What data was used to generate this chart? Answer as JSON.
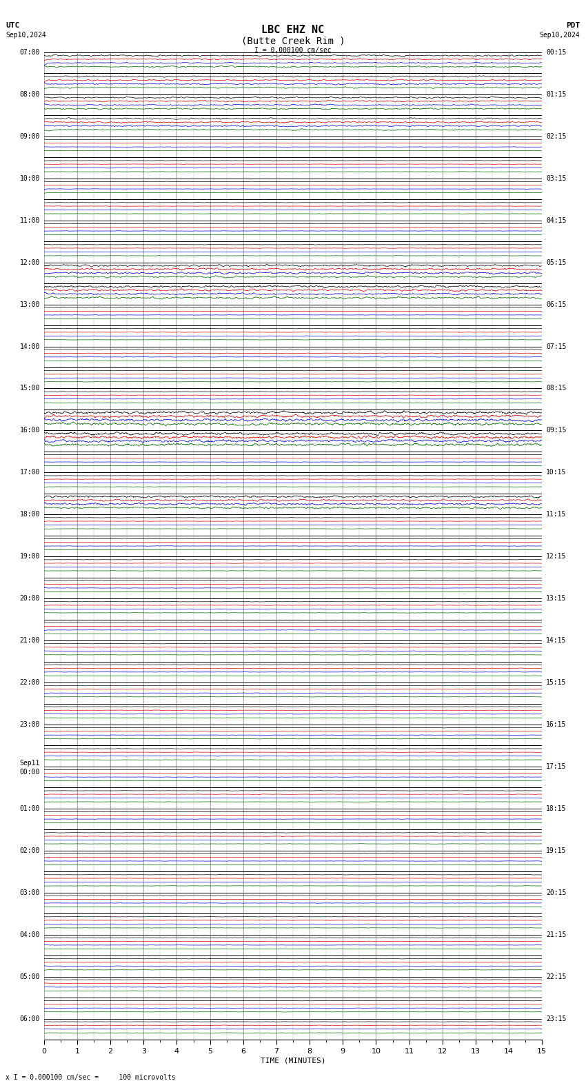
{
  "title_line1": "LBC EHZ NC",
  "title_line2": "(Butte Creek Rim )",
  "scale_label": "I = 0.000100 cm/sec",
  "utc_label": "UTC",
  "pdt_label": "PDT",
  "utc_date": "Sep10,2024",
  "pdt_date": "Sep10,2024",
  "bottom_note": "x I = 0.000100 cm/sec =     100 microvolts",
  "xlabel": "TIME (MINUTES)",
  "bg_color": "#ffffff",
  "grid_color": "#aaaaaa",
  "trace_colors": [
    "#000000",
    "#cc0000",
    "#0000cc",
    "#006400"
  ],
  "n_rows": 47,
  "x_min": 0,
  "x_max": 15,
  "x_ticks": [
    0,
    1,
    2,
    3,
    4,
    5,
    6,
    7,
    8,
    9,
    10,
    11,
    12,
    13,
    14,
    15
  ],
  "left_labels": [
    "07:00",
    "08:00",
    "09:00",
    "10:00",
    "11:00",
    "12:00",
    "13:00",
    "14:00",
    "15:00",
    "16:00",
    "17:00",
    "18:00",
    "19:00",
    "20:00",
    "21:00",
    "22:00",
    "23:00",
    "Sep11\n00:00",
    "01:00",
    "02:00",
    "03:00",
    "04:00",
    "05:00",
    "06:00"
  ],
  "right_labels": [
    "00:15",
    "01:15",
    "02:15",
    "03:15",
    "04:15",
    "05:15",
    "06:15",
    "07:15",
    "08:15",
    "09:15",
    "10:15",
    "11:15",
    "12:15",
    "13:15",
    "14:15",
    "15:15",
    "16:15",
    "17:15",
    "18:15",
    "19:15",
    "20:15",
    "21:15",
    "22:15",
    "23:15"
  ],
  "label_fontsize": 7,
  "axis_fontsize": 8,
  "title_fontsize": 11,
  "row_amplitudes": [
    0.18,
    0.18,
    0.18,
    0.18,
    0.04,
    0.04,
    0.04,
    0.04,
    0.04,
    0.04,
    0.25,
    0.25,
    0.04,
    0.04,
    0.04,
    0.04,
    0.04,
    0.35,
    0.35,
    0.04,
    0.04,
    0.25,
    0.04,
    0.04,
    0.04,
    0.04,
    0.04,
    0.04,
    0.04,
    0.04,
    0.04,
    0.04,
    0.04,
    0.04,
    0.04,
    0.04,
    0.04,
    0.04,
    0.04,
    0.04,
    0.04,
    0.04,
    0.04,
    0.04,
    0.04,
    0.04,
    0.04
  ]
}
